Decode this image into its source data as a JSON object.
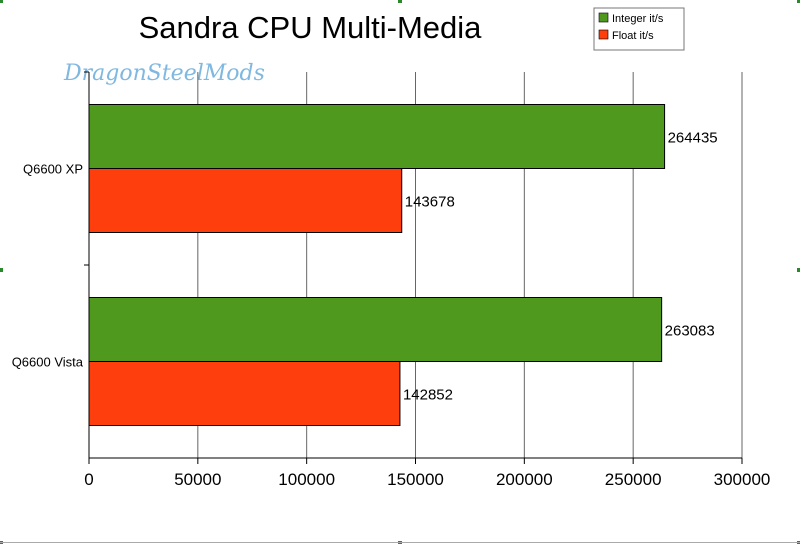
{
  "chart_data": {
    "type": "bar",
    "orientation": "horizontal",
    "title": "Sandra CPU Multi-Media",
    "watermark": "DragonSteelMods",
    "categories": [
      "Q6600 XP",
      "Q6600 Vista"
    ],
    "series": [
      {
        "name": "Integer it/s",
        "color": "#4f9a1e",
        "values": [
          264435,
          263083
        ]
      },
      {
        "name": "Float it/s",
        "color": "#ff3e0d",
        "values": [
          143678,
          142852
        ]
      }
    ],
    "xlim": [
      0,
      300000
    ],
    "xticks": [
      "0",
      "50000",
      "100000",
      "150000",
      "200000",
      "250000",
      "300000"
    ],
    "xlabel": "",
    "ylabel": "",
    "grid": "vertical",
    "legend": "top-right"
  }
}
